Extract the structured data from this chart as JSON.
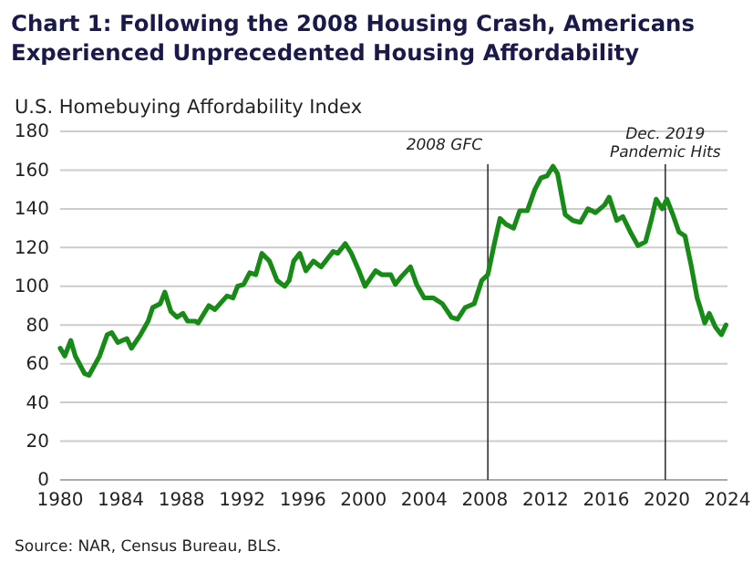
{
  "chart_data": {
    "type": "line",
    "title": "Chart 1: Following the 2008 Housing Crash, Americans Experienced Unprecedented Housing Affordability",
    "subtitle": "U.S. Homebuying Affordability Index",
    "x": [
      1980.0,
      1980.3,
      1980.7,
      1981.0,
      1981.6,
      1981.9,
      1982.6,
      1983.1,
      1983.4,
      1983.8,
      1984.4,
      1984.7,
      1985.3,
      1985.8,
      1986.1,
      1986.6,
      1986.9,
      1987.3,
      1987.7,
      1988.1,
      1988.4,
      1988.9,
      1989.1,
      1989.8,
      1990.2,
      1991.0,
      1991.4,
      1991.7,
      1992.1,
      1992.5,
      1992.9,
      1993.3,
      1993.8,
      1994.3,
      1994.8,
      1995.1,
      1995.4,
      1995.8,
      1996.2,
      1996.7,
      1997.2,
      1997.6,
      1998.0,
      1998.3,
      1998.8,
      1999.2,
      1999.7,
      2000.1,
      2000.8,
      2001.2,
      2001.8,
      2002.1,
      2002.5,
      2003.1,
      2003.5,
      2004.0,
      2004.6,
      2005.2,
      2005.8,
      2006.2,
      2006.7,
      2007.3,
      2007.8,
      2008.2,
      2008.6,
      2009.0,
      2009.4,
      2009.9,
      2010.3,
      2010.8,
      2011.3,
      2011.7,
      2012.1,
      2012.5,
      2012.8,
      2013.3,
      2013.8,
      2014.3,
      2014.8,
      2015.3,
      2015.9,
      2016.2,
      2016.7,
      2017.1,
      2017.6,
      2018.1,
      2018.6,
      2019.0,
      2019.3,
      2019.7,
      2020.0,
      2020.4,
      2020.8,
      2021.2,
      2021.6,
      2022.0,
      2022.2,
      2022.5,
      2022.8,
      2023.2,
      2023.6,
      2023.9
    ],
    "series": [
      {
        "color": "#178a17",
        "values": [
          68,
          64,
          72,
          64,
          55,
          54,
          64,
          75,
          76,
          71,
          73,
          68,
          75,
          82,
          89,
          91,
          97,
          87,
          84,
          86,
          82,
          82,
          81,
          90,
          88,
          95,
          94,
          100,
          101,
          107,
          106,
          117,
          113,
          103,
          100,
          103,
          113,
          117,
          108,
          113,
          110,
          114,
          118,
          117,
          122,
          117,
          108,
          100,
          108,
          106,
          106,
          101,
          105,
          110,
          101,
          94,
          94,
          91,
          84,
          83,
          89,
          91,
          103,
          106,
          121,
          135,
          132,
          130,
          139,
          139,
          150,
          156,
          157,
          162,
          158,
          137,
          134,
          133,
          140,
          138,
          142,
          146,
          134,
          136,
          128,
          121,
          123,
          135,
          145,
          140,
          145,
          137,
          128,
          126,
          111,
          94,
          89,
          81,
          86,
          79,
          75,
          80
        ]
      }
    ],
    "xlim": [
      1980,
      2024
    ],
    "xticks": [
      1980,
      1984,
      1988,
      1992,
      1996,
      2000,
      2004,
      2008,
      2012,
      2016,
      2020,
      2024
    ],
    "ylim": [
      0,
      180
    ],
    "yticks": [
      0,
      20,
      40,
      60,
      80,
      100,
      120,
      140,
      160,
      180
    ],
    "grid": "y",
    "ref_lines": [
      {
        "axis": "x",
        "value": 2008.2,
        "label": "2008 GFC",
        "color": "#333333"
      },
      {
        "axis": "x",
        "value": 2019.9,
        "label": "Dec. 2019\nPandemic Hits",
        "color": "#333333"
      }
    ],
    "annotations": [
      "Source: NAR, Census Bureau, BLS."
    ]
  }
}
